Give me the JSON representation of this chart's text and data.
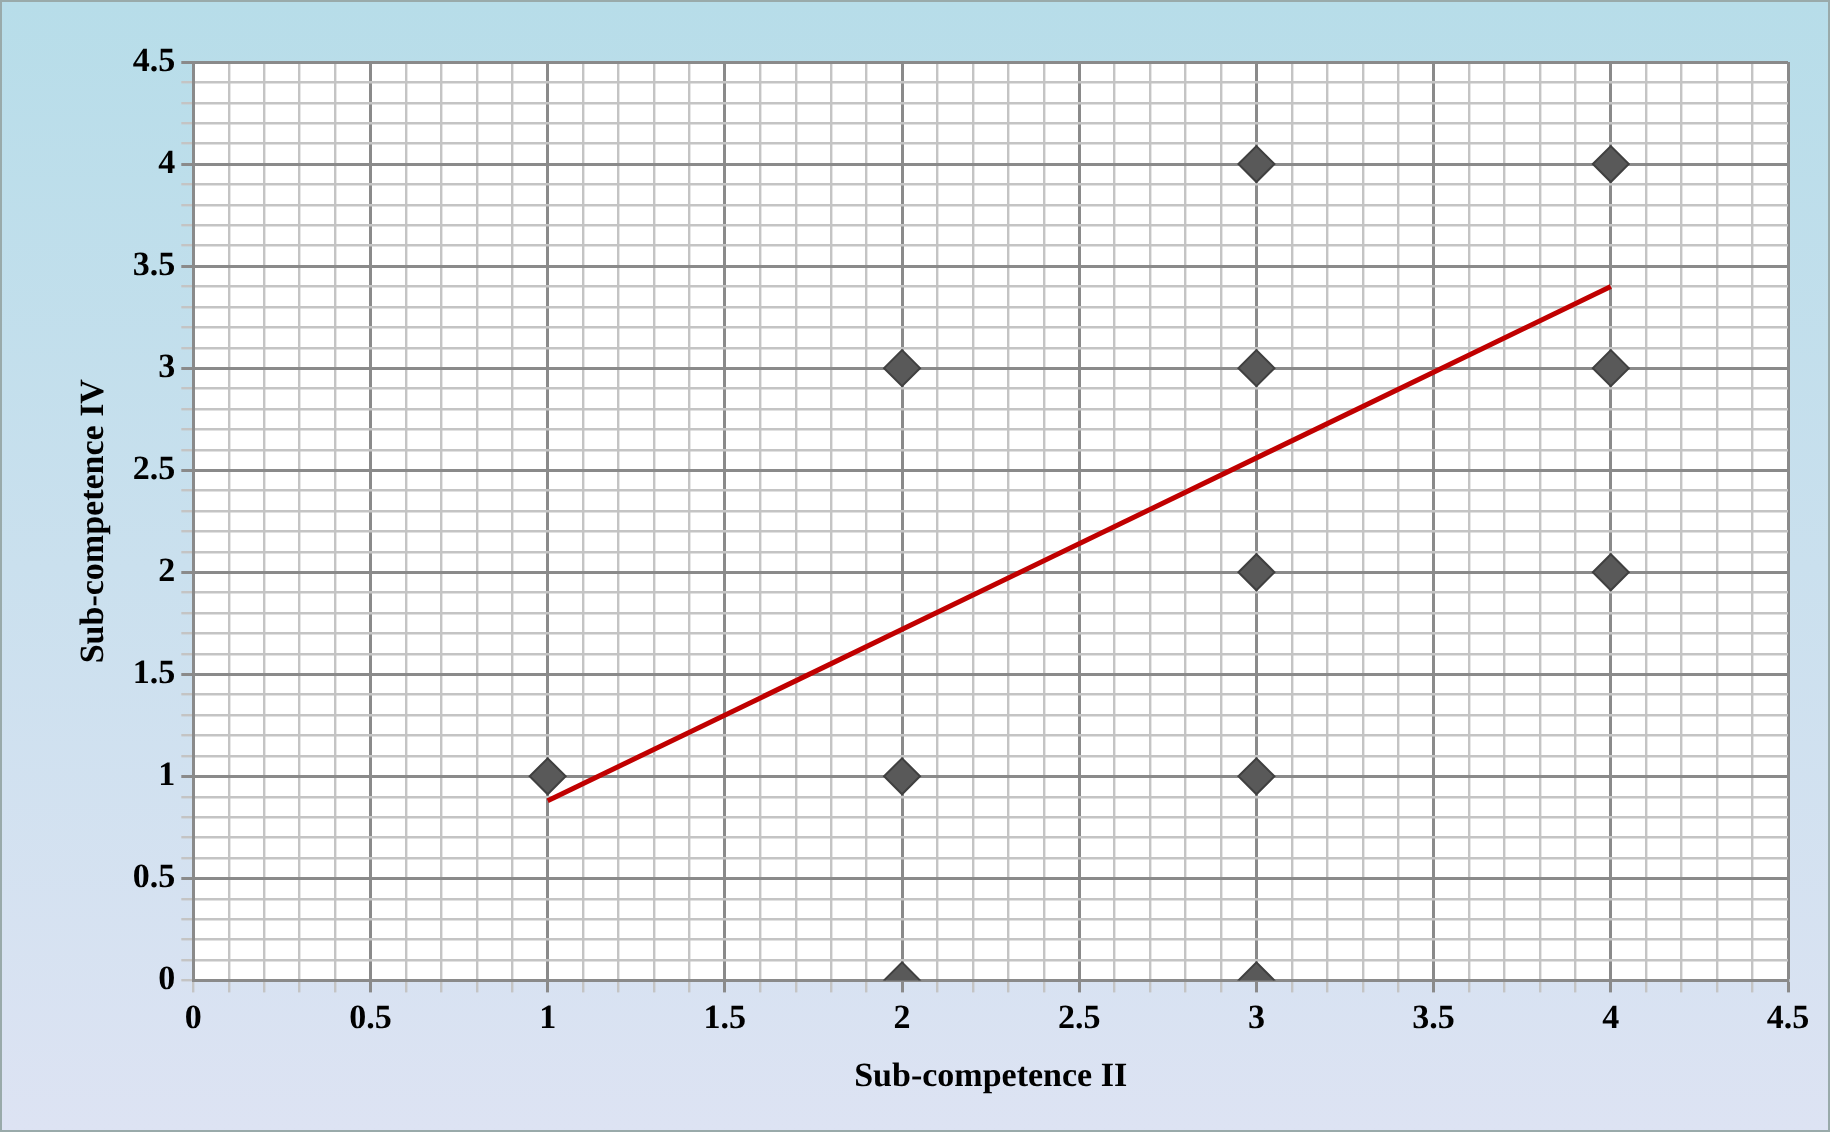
{
  "chart_data": {
    "type": "scatter",
    "xlabel": "Sub-competence II",
    "ylabel": "Sub-competence IV",
    "xlim": [
      0,
      4.5
    ],
    "ylim": [
      0,
      4.5
    ],
    "xticks": [
      0,
      {
        "value": 0.1,
        "label": null
      },
      {
        "value": 0.2,
        "label": null
      },
      {
        "value": 0.3,
        "label": null
      },
      {
        "value": 0.4,
        "label": null
      },
      0.5,
      {
        "value": 0.6,
        "label": null
      },
      {
        "value": 0.7,
        "label": null
      },
      {
        "value": 0.8,
        "label": null
      },
      {
        "value": 0.9,
        "label": null
      },
      1,
      {
        "value": 1.1,
        "label": null
      },
      {
        "value": 1.2,
        "label": null
      },
      {
        "value": 1.3,
        "label": null
      },
      {
        "value": 1.4,
        "label": null
      },
      1.5,
      {
        "value": 1.6,
        "label": null
      },
      {
        "value": 1.7,
        "label": null
      },
      {
        "value": 1.8,
        "label": null
      },
      {
        "value": 1.9,
        "label": null
      },
      2,
      {
        "value": 2.1,
        "label": null
      },
      {
        "value": 2.2,
        "label": null
      },
      {
        "value": 2.3,
        "label": null
      },
      {
        "value": 2.4,
        "label": null
      },
      2.5,
      {
        "value": 2.6,
        "label": null
      },
      {
        "value": 2.7,
        "label": null
      },
      {
        "value": 2.8,
        "label": null
      },
      {
        "value": 2.9,
        "label": null
      },
      3,
      {
        "value": 3.1,
        "label": null
      },
      {
        "value": 3.2,
        "label": null
      },
      {
        "value": 3.3,
        "label": null
      },
      {
        "value": 3.4,
        "label": null
      },
      3.5,
      {
        "value": 3.6,
        "label": null
      },
      {
        "value": 3.7,
        "label": null
      },
      {
        "value": 3.8,
        "label": null
      },
      {
        "value": 3.9,
        "label": null
      },
      4,
      {
        "value": 4.1,
        "label": null
      },
      {
        "value": 4.2,
        "label": null
      },
      {
        "value": 4.3,
        "label": null
      },
      {
        "value": 4.4,
        "label": null
      },
      4.5
    ],
    "yticks": [
      0,
      {
        "value": 0.1,
        "label": null
      },
      {
        "value": 0.2,
        "label": null
      },
      {
        "value": 0.3,
        "label": null
      },
      {
        "value": 0.4,
        "label": null
      },
      0.5,
      {
        "value": 0.6,
        "label": null
      },
      {
        "value": 0.7,
        "label": null
      },
      {
        "value": 0.8,
        "label": null
      },
      {
        "value": 0.9,
        "label": null
      },
      1,
      {
        "value": 1.1,
        "label": null
      },
      {
        "value": 1.2,
        "label": null
      },
      {
        "value": 1.3,
        "label": null
      },
      {
        "value": 1.4,
        "label": null
      },
      1.5,
      {
        "value": 1.6,
        "label": null
      },
      {
        "value": 1.7,
        "label": null
      },
      {
        "value": 1.8,
        "label": null
      },
      {
        "value": 1.9,
        "label": null
      },
      2,
      {
        "value": 2.1,
        "label": null
      },
      {
        "value": 2.2,
        "label": null
      },
      {
        "value": 2.3,
        "label": null
      },
      {
        "value": 2.4,
        "label": null
      },
      2.5,
      {
        "value": 2.6,
        "label": null
      },
      {
        "value": 2.7,
        "label": null
      },
      {
        "value": 2.8,
        "label": null
      },
      {
        "value": 2.9,
        "label": null
      },
      3,
      {
        "value": 3.1,
        "label": null
      },
      {
        "value": 3.2,
        "label": null
      },
      {
        "value": 3.3,
        "label": null
      },
      {
        "value": 3.4,
        "label": null
      },
      3.5,
      {
        "value": 3.6,
        "label": null
      },
      {
        "value": 3.7,
        "label": null
      },
      {
        "value": 3.8,
        "label": null
      },
      {
        "value": 3.9,
        "label": null
      },
      4,
      {
        "value": 4.1,
        "label": null
      },
      {
        "value": 4.2,
        "label": null
      },
      {
        "value": 4.3,
        "label": null
      },
      {
        "value": 4.4,
        "label": null
      },
      4.5
    ],
    "grid": true,
    "legend": false,
    "series": [
      {
        "color": "#595959",
        "marker": "diamond",
        "x": [
          1,
          2,
          2,
          2,
          3,
          3,
          3,
          3,
          3,
          4,
          4,
          4
        ],
        "values": [
          1,
          3,
          1,
          0,
          4,
          3,
          2,
          1,
          0,
          4,
          3,
          2
        ]
      },
      {
        "type": "line",
        "color": "#c00000",
        "marker": "none",
        "line_style": "solid",
        "x": [
          1,
          4
        ],
        "values": [
          0.88,
          3.4
        ]
      }
    ]
  }
}
